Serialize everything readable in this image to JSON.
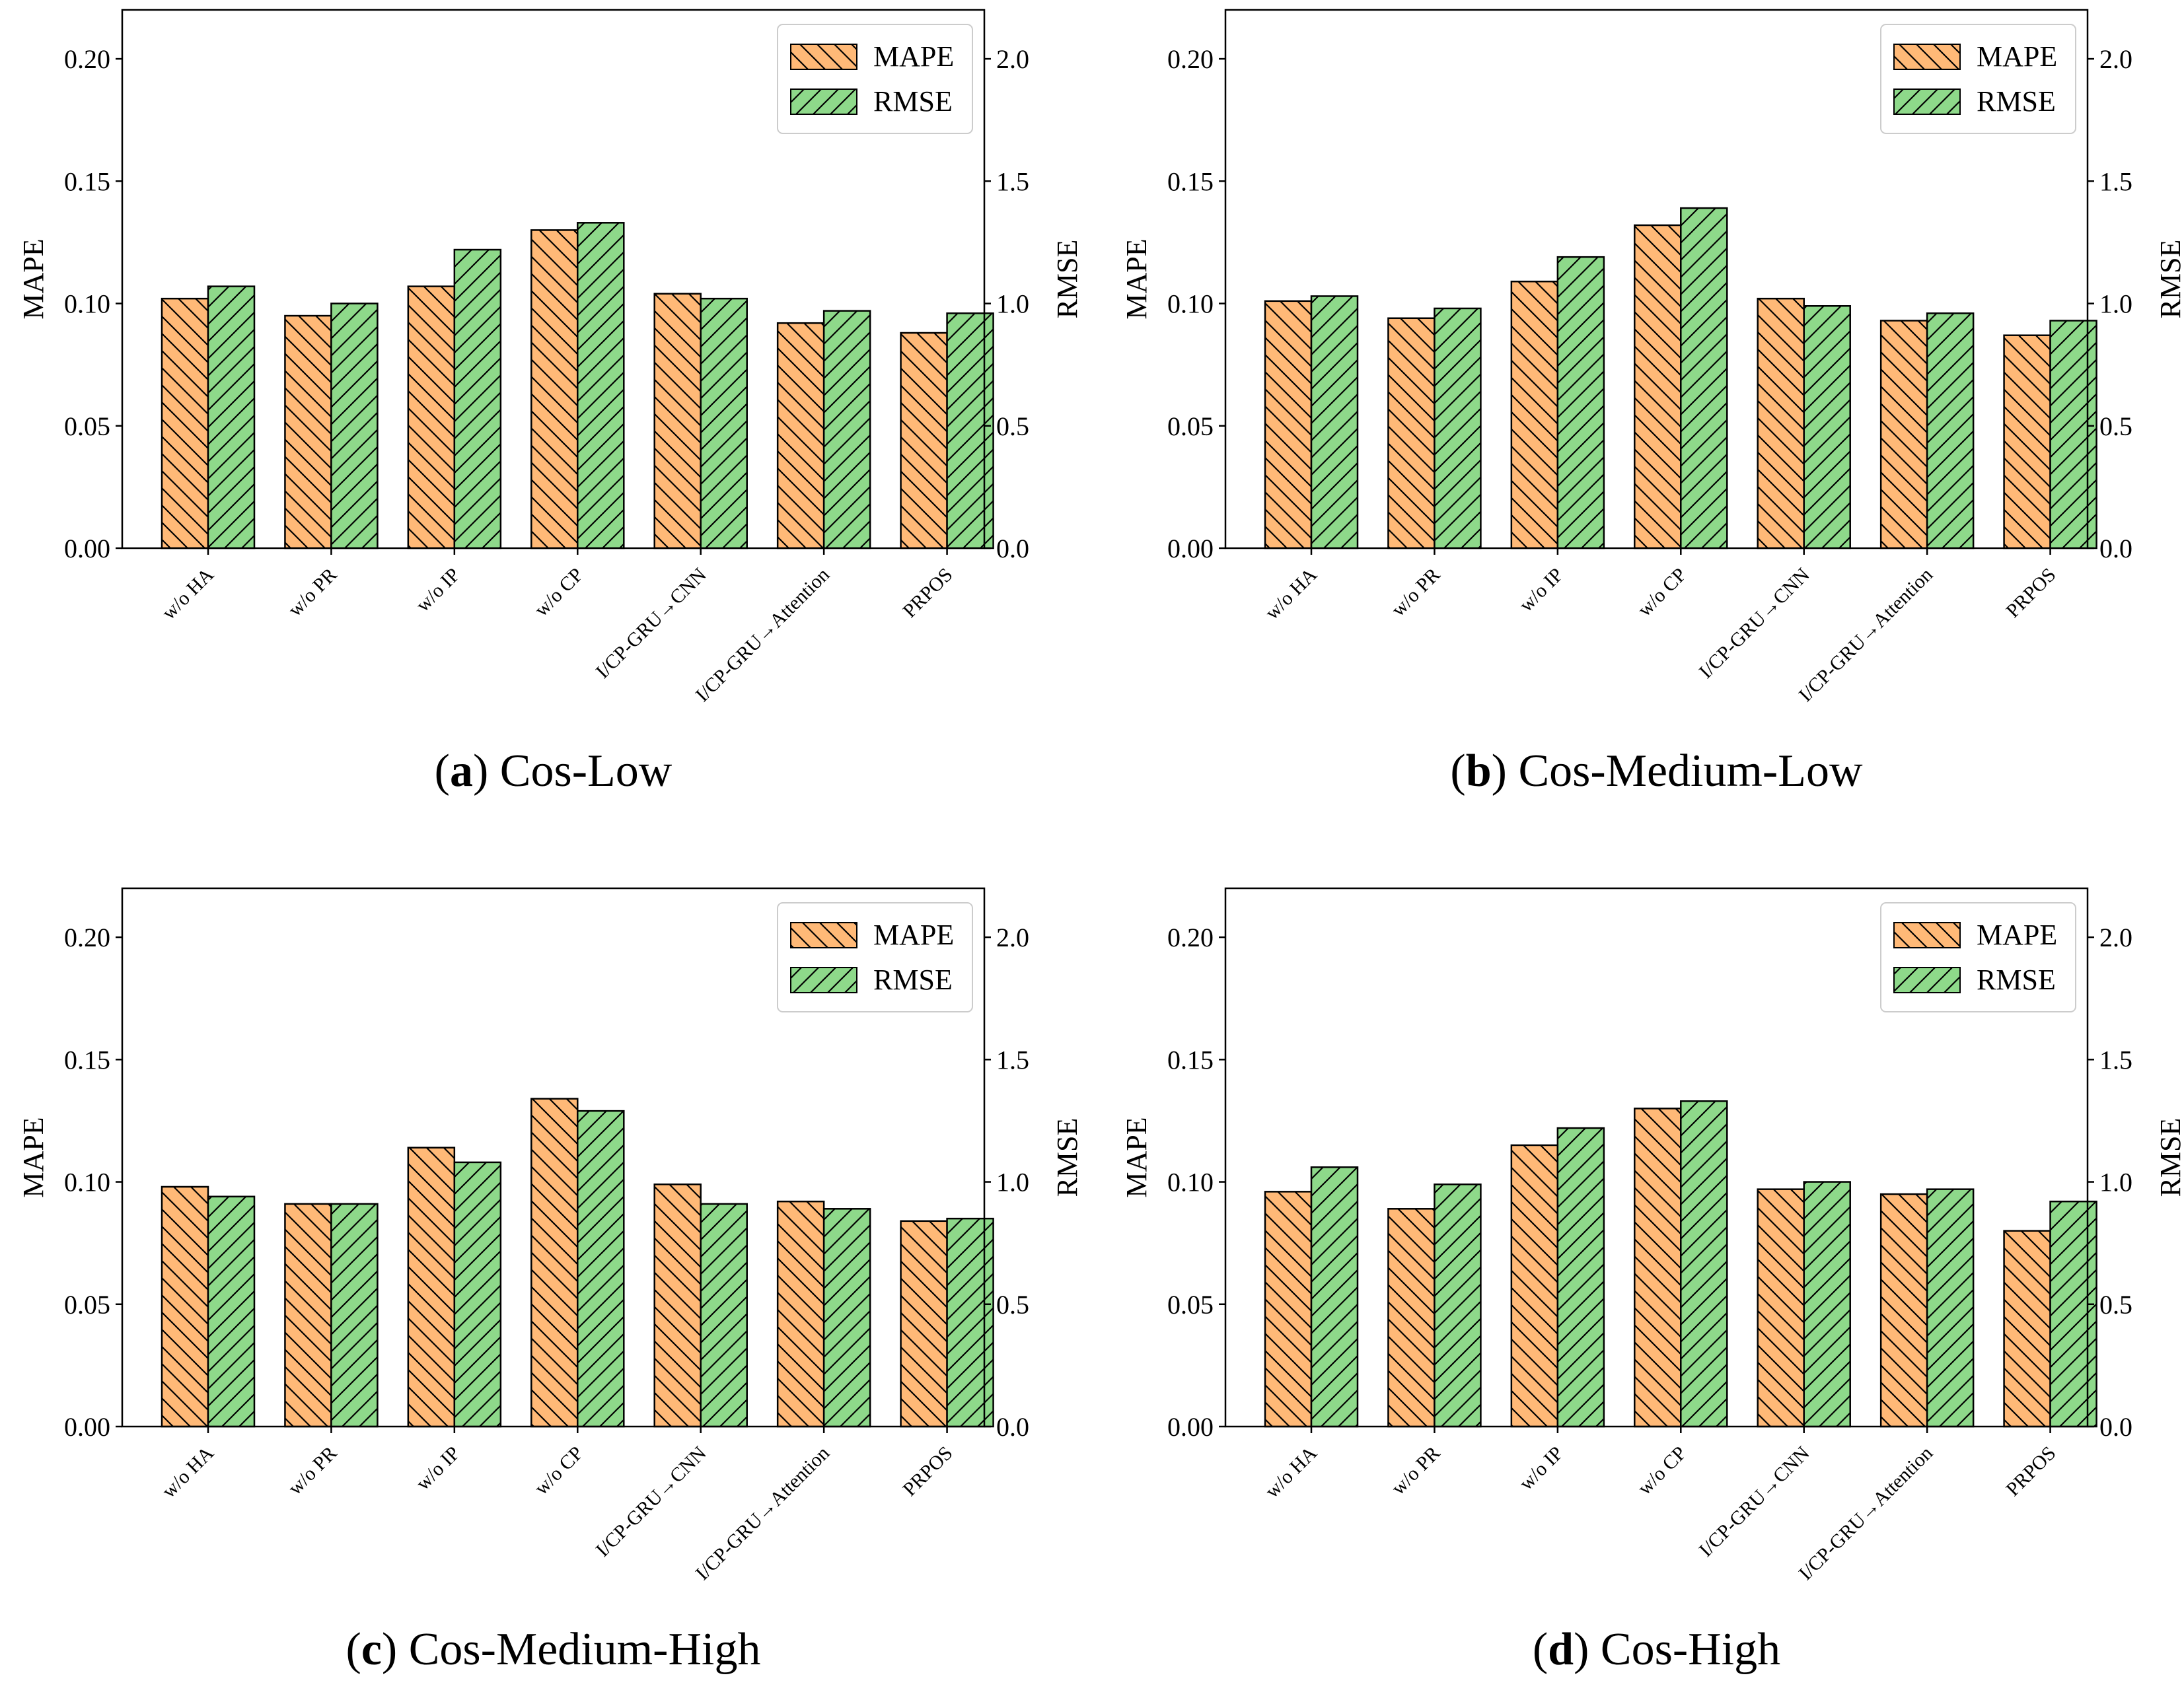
{
  "colors": {
    "mape_fill": "#ffb977",
    "rmse_fill": "#8ed98a",
    "edge": "#000000"
  },
  "chart_data": [
    {
      "type": "bar",
      "panel_letter": "a",
      "title": "Cos-Low",
      "categories": [
        "w/o HA",
        "w/o PR",
        "w/o IP",
        "w/o CP",
        "I/CP-GRU→CNN",
        "I/CP-GRU→Attention",
        "PRPOS"
      ],
      "series": [
        {
          "name": "MAPE",
          "axis": "left",
          "values": [
            0.102,
            0.095,
            0.107,
            0.13,
            0.104,
            0.092,
            0.088
          ]
        },
        {
          "name": "RMSE",
          "axis": "right",
          "values": [
            1.07,
            1.0,
            1.22,
            1.33,
            1.02,
            0.97,
            0.96
          ]
        }
      ],
      "ylabel": "MAPE",
      "y2label": "RMSE",
      "ylim": [
        0,
        0.22
      ],
      "y2lim": [
        0,
        2.2
      ],
      "yticks": [
        "0.00",
        "0.05",
        "0.10",
        "0.15",
        "0.20"
      ],
      "y2ticks": [
        "0.0",
        "0.5",
        "1.0",
        "1.5",
        "2.0"
      ],
      "legend": "top-right"
    },
    {
      "type": "bar",
      "panel_letter": "b",
      "title": "Cos-Medium-Low",
      "categories": [
        "w/o HA",
        "w/o PR",
        "w/o IP",
        "w/o CP",
        "I/CP-GRU→CNN",
        "I/CP-GRU→Attention",
        "PRPOS"
      ],
      "series": [
        {
          "name": "MAPE",
          "axis": "left",
          "values": [
            0.101,
            0.094,
            0.109,
            0.132,
            0.102,
            0.093,
            0.087
          ]
        },
        {
          "name": "RMSE",
          "axis": "right",
          "values": [
            1.03,
            0.98,
            1.19,
            1.39,
            0.99,
            0.96,
            0.93
          ]
        }
      ],
      "ylabel": "MAPE",
      "y2label": "RMSE",
      "ylim": [
        0,
        0.22
      ],
      "y2lim": [
        0,
        2.2
      ],
      "yticks": [
        "0.00",
        "0.05",
        "0.10",
        "0.15",
        "0.20"
      ],
      "y2ticks": [
        "0.0",
        "0.5",
        "1.0",
        "1.5",
        "2.0"
      ],
      "legend": "top-right"
    },
    {
      "type": "bar",
      "panel_letter": "c",
      "title": "Cos-Medium-High",
      "categories": [
        "w/o HA",
        "w/o PR",
        "w/o IP",
        "w/o CP",
        "I/CP-GRU→CNN",
        "I/CP-GRU→Attention",
        "PRPOS"
      ],
      "series": [
        {
          "name": "MAPE",
          "axis": "left",
          "values": [
            0.098,
            0.091,
            0.114,
            0.134,
            0.099,
            0.092,
            0.084
          ]
        },
        {
          "name": "RMSE",
          "axis": "right",
          "values": [
            0.94,
            0.91,
            1.08,
            1.29,
            0.91,
            0.89,
            0.85
          ]
        }
      ],
      "ylabel": "MAPE",
      "y2label": "RMSE",
      "ylim": [
        0,
        0.22
      ],
      "y2lim": [
        0,
        2.2
      ],
      "yticks": [
        "0.00",
        "0.05",
        "0.10",
        "0.15",
        "0.20"
      ],
      "y2ticks": [
        "0.0",
        "0.5",
        "1.0",
        "1.5",
        "2.0"
      ],
      "legend": "top-right"
    },
    {
      "type": "bar",
      "panel_letter": "d",
      "title": "Cos-High",
      "categories": [
        "w/o HA",
        "w/o PR",
        "w/o IP",
        "w/o CP",
        "I/CP-GRU→CNN",
        "I/CP-GRU→Attention",
        "PRPOS"
      ],
      "series": [
        {
          "name": "MAPE",
          "axis": "left",
          "values": [
            0.096,
            0.089,
            0.115,
            0.13,
            0.097,
            0.095,
            0.08
          ]
        },
        {
          "name": "RMSE",
          "axis": "right",
          "values": [
            1.06,
            0.99,
            1.22,
            1.33,
            1.0,
            0.97,
            0.92
          ]
        }
      ],
      "ylabel": "MAPE",
      "y2label": "RMSE",
      "ylim": [
        0,
        0.22
      ],
      "y2lim": [
        0,
        2.2
      ],
      "yticks": [
        "0.00",
        "0.05",
        "0.10",
        "0.15",
        "0.20"
      ],
      "y2ticks": [
        "0.0",
        "0.5",
        "1.0",
        "1.5",
        "2.0"
      ],
      "legend": "top-right"
    }
  ]
}
